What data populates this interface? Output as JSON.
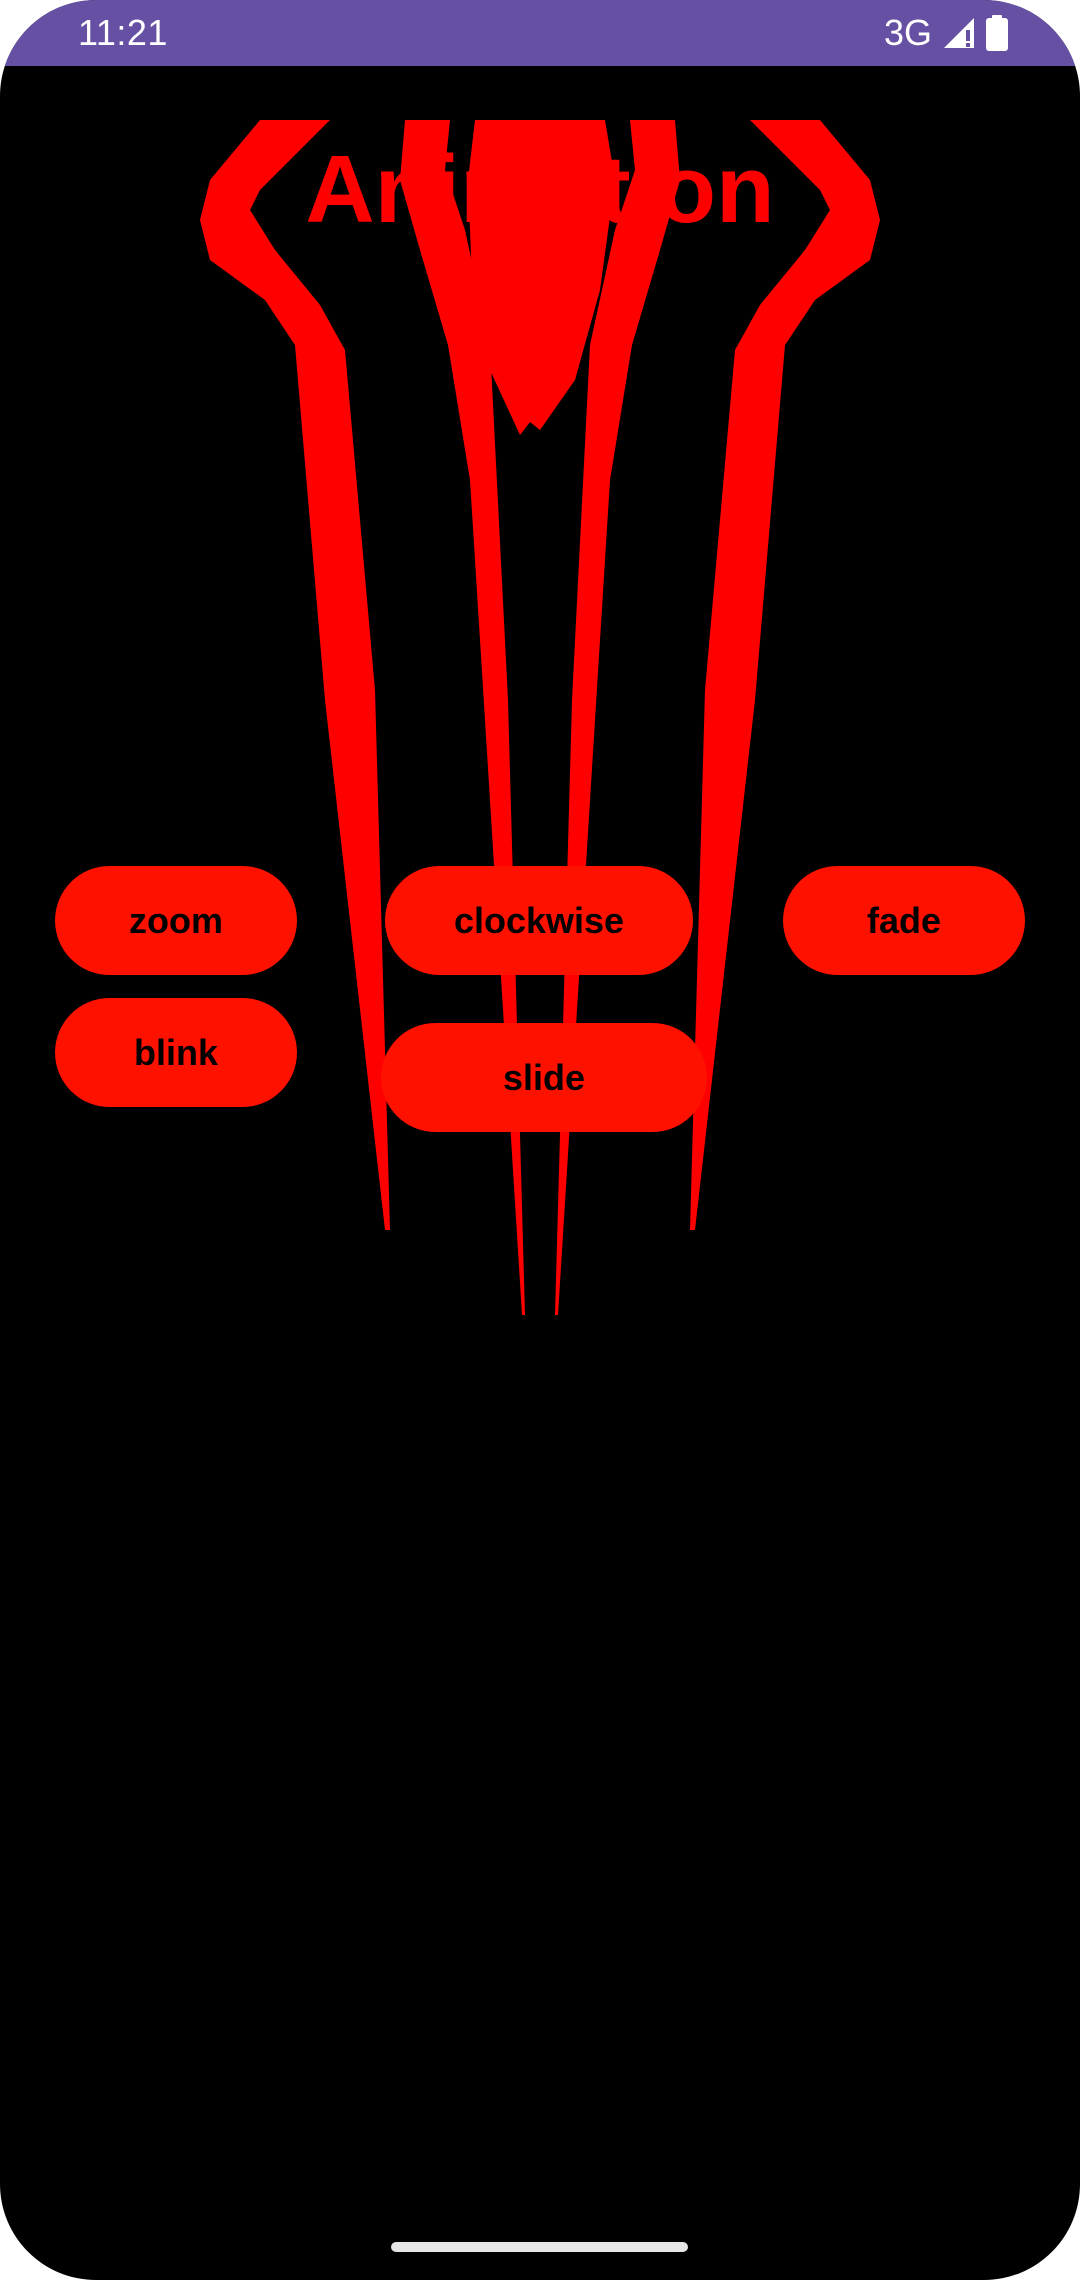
{
  "status_bar": {
    "time": "11:21",
    "network": "3G",
    "icons": [
      "signal-icon",
      "battery-icon"
    ],
    "background": "#6650a4"
  },
  "app": {
    "title": "Animation",
    "accent_color": "#ff0000",
    "button_color": "#ff1100",
    "background_image": "spider-logo"
  },
  "buttons": {
    "zoom": "zoom",
    "clockwise": "clockwise",
    "fade": "fade",
    "blink": "blink",
    "slide": "slide"
  }
}
